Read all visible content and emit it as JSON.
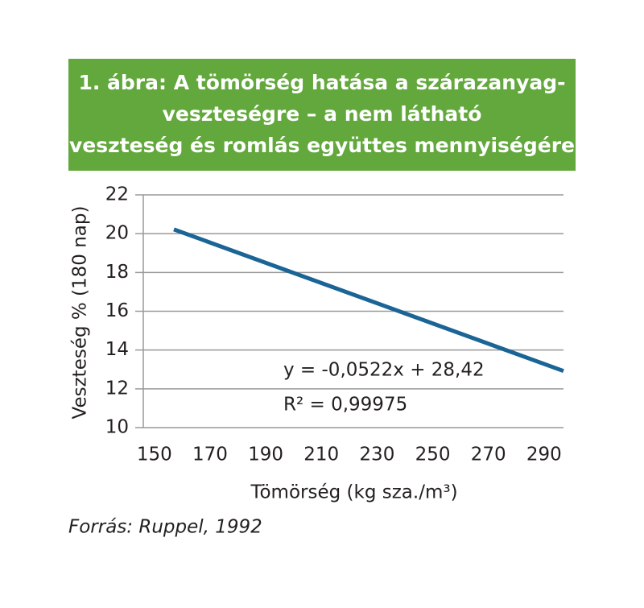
{
  "chart_data": {
    "type": "line",
    "title": [
      "1. ábra: A tömörség hatása a szárazanyag-",
      "veszteségre – a nem látható",
      "veszteség és romlás együttes mennyiségére"
    ],
    "x_label": "Tömörség (kg sza./m³)",
    "y_label": "Veszteség % (180 nap)",
    "annotations": [
      "y = -0,0522x + 28,42",
      "R² = 0,99975"
    ],
    "source": "Forrás: Ruppel, 1992",
    "x": [
      157,
      297
    ],
    "series": [
      {
        "name": "Veszteség",
        "color": "#1a6496",
        "values": [
          20.22,
          12.92
        ]
      }
    ],
    "xlim": [
      146,
      297
    ],
    "xticks": [
      150,
      170,
      190,
      210,
      230,
      250,
      270,
      290
    ],
    "ylim": [
      10,
      22
    ],
    "yticks": [
      10,
      12,
      14,
      16,
      18,
      20,
      22
    ],
    "grid": true,
    "title_color": "#62a83c"
  }
}
